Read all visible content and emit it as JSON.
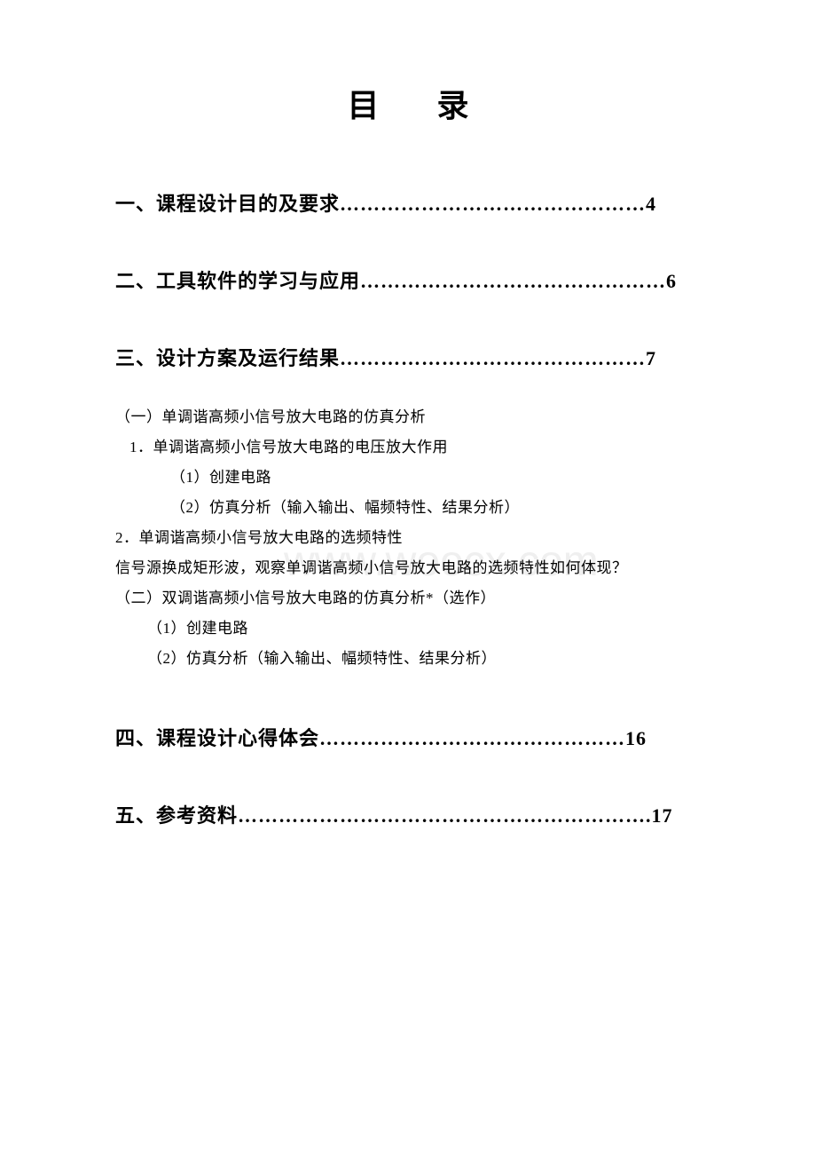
{
  "title": "目 录",
  "watermark": "www.woocx.com",
  "toc": {
    "item1": "一、课程设计目的及要求………………………………………4",
    "item2": "二、工具软件的学习与应用………………………………………6",
    "item3": "三、设计方案及运行结果………………………………………7",
    "item4": "四、课程设计心得体会………………………………………16",
    "item5": "五、参考资料…………………………………………………….17"
  },
  "sub": {
    "s1": "（一）单调谐高频小信号放大电路的仿真分析",
    "s2": "1．单调谐高频小信号放大电路的电压放大作用",
    "s3": "（1）创建电路",
    "s4": "（2）仿真分析（输入输出、幅频特性、结果分析）",
    "s5": "2．单调谐高频小信号放大电路的选频特性",
    "s6": "信号源换成矩形波，观察单调谐高频小信号放大电路的选频特性如何体现？",
    "s7": "（二）双调谐高频小信号放大电路的仿真分析*（选作）",
    "s8": "（1）创建电路",
    "s9": "（2）仿真分析（输入输出、幅频特性、结果分析）"
  },
  "colors": {
    "background": "#ffffff",
    "text": "#000000",
    "watermark": "#efefef"
  },
  "typography": {
    "title_fontsize": 36,
    "toc_main_fontsize": 22,
    "sub_fontsize": 17,
    "font_family": "SimSun"
  }
}
